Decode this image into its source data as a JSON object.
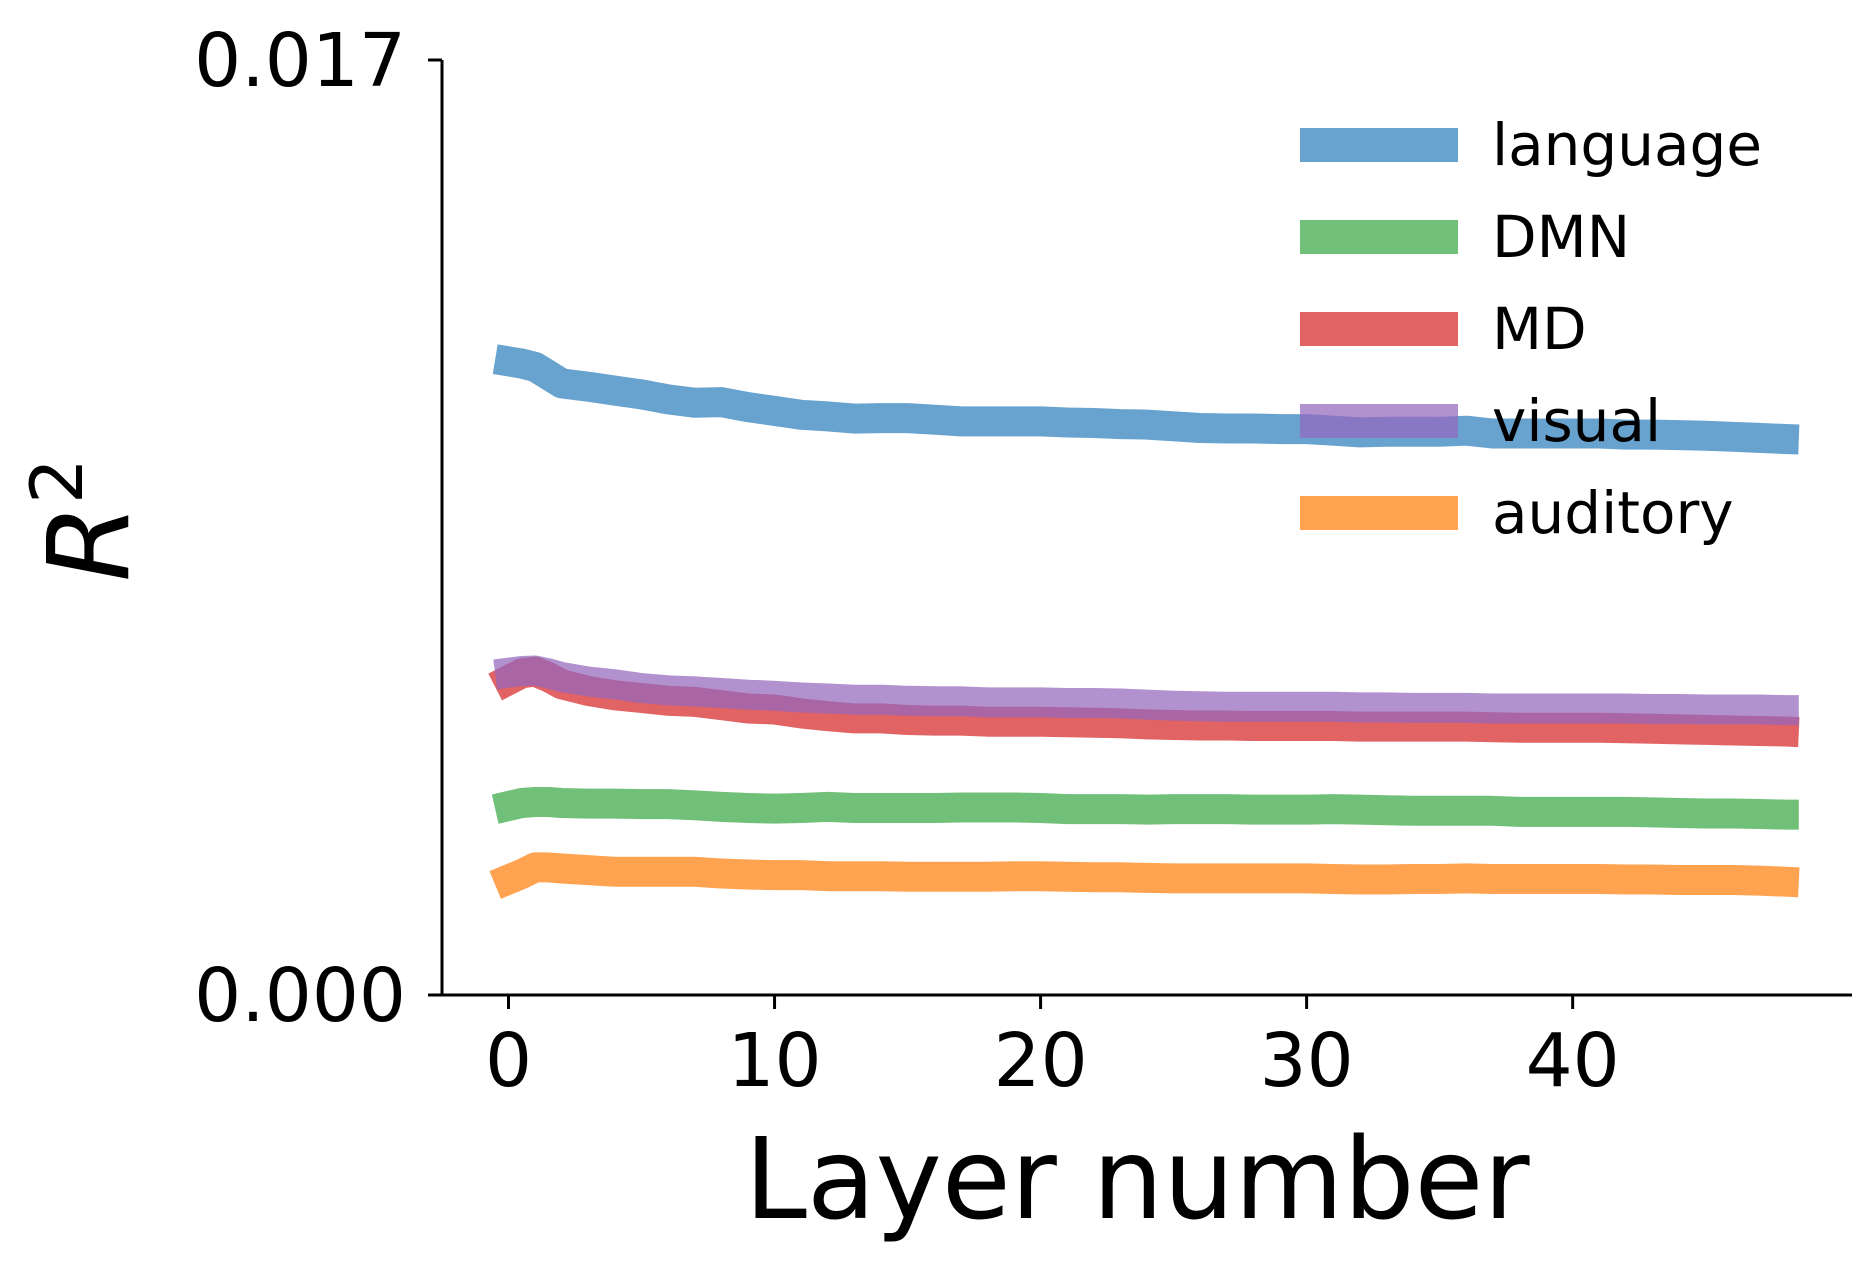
{
  "chart_data": {
    "type": "line",
    "xlabel": "Layer number",
    "ylabel": "R",
    "ylabel_superscript": "2",
    "xlim": [
      -2.5,
      50.5
    ],
    "ylim": [
      0.0,
      0.017
    ],
    "xticks": [
      0,
      10,
      20,
      30,
      40
    ],
    "xtick_labels": [
      "0",
      "10",
      "20",
      "30",
      "40"
    ],
    "yticks": [
      0.0,
      0.017
    ],
    "ytick_labels": [
      "0.000",
      "0.017"
    ],
    "grid": false,
    "legend_position": "top-right",
    "x": [
      -0.5,
      0.5,
      1,
      1.5,
      2,
      3,
      4,
      5,
      6,
      7,
      8,
      9,
      10,
      11,
      12,
      13,
      14,
      15,
      16,
      17,
      18,
      19,
      20,
      21,
      22,
      23,
      24,
      25,
      26,
      27,
      28,
      29,
      30,
      31,
      32,
      33,
      34,
      35,
      36,
      37,
      38,
      39,
      40,
      41,
      42,
      43,
      44,
      45,
      46,
      47,
      48,
      48.5
    ],
    "series": [
      {
        "name": "language",
        "color": "#2e7ebc",
        "values": [
          0.01156,
          0.01148,
          0.01142,
          0.01127,
          0.01112,
          0.01106,
          0.01099,
          0.01092,
          0.01083,
          0.01077,
          0.01078,
          0.01069,
          0.01062,
          0.01055,
          0.01052,
          0.01048,
          0.01049,
          0.01049,
          0.01046,
          0.01043,
          0.01043,
          0.01043,
          0.01043,
          0.01041,
          0.0104,
          0.01038,
          0.01037,
          0.01034,
          0.01031,
          0.0103,
          0.0103,
          0.01029,
          0.01029,
          0.01026,
          0.01023,
          0.01024,
          0.01024,
          0.01024,
          0.01026,
          0.01021,
          0.01021,
          0.01021,
          0.01021,
          0.01021,
          0.01019,
          0.01019,
          0.01018,
          0.01017,
          0.01015,
          0.01013,
          0.01011,
          0.0101
        ]
      },
      {
        "name": "DMN",
        "color": "#3aa845",
        "values": [
          0.00338,
          0.00349,
          0.00351,
          0.00351,
          0.00349,
          0.00348,
          0.00348,
          0.00347,
          0.00347,
          0.00345,
          0.00342,
          0.0034,
          0.00339,
          0.0034,
          0.00342,
          0.0034,
          0.0034,
          0.0034,
          0.0034,
          0.00341,
          0.00341,
          0.00341,
          0.0034,
          0.00338,
          0.00338,
          0.00338,
          0.00337,
          0.00338,
          0.00338,
          0.00338,
          0.00337,
          0.00337,
          0.00337,
          0.00338,
          0.00337,
          0.00336,
          0.00335,
          0.00335,
          0.00335,
          0.00335,
          0.00333,
          0.00333,
          0.00333,
          0.00333,
          0.00333,
          0.00332,
          0.00331,
          0.0033,
          0.0033,
          0.00329,
          0.00328,
          0.00328
        ]
      },
      {
        "name": "MD",
        "color": "#d62728",
        "values": [
          0.0056,
          0.00585,
          0.00588,
          0.00578,
          0.00565,
          0.00553,
          0.00545,
          0.0054,
          0.00535,
          0.00533,
          0.00527,
          0.00521,
          0.00519,
          0.00512,
          0.00507,
          0.00503,
          0.00503,
          0.005,
          0.00499,
          0.00499,
          0.00497,
          0.00497,
          0.00497,
          0.00496,
          0.00495,
          0.00494,
          0.00492,
          0.00491,
          0.0049,
          0.0049,
          0.00489,
          0.00489,
          0.00489,
          0.00489,
          0.00488,
          0.00488,
          0.00488,
          0.00488,
          0.00488,
          0.00487,
          0.00486,
          0.00486,
          0.00486,
          0.00486,
          0.00485,
          0.00484,
          0.00483,
          0.00482,
          0.00481,
          0.0048,
          0.00479,
          0.00478
        ]
      },
      {
        "name": "visual",
        "color": "#9467bd",
        "values": [
          0.00583,
          0.00589,
          0.0059,
          0.00585,
          0.00578,
          0.0057,
          0.00565,
          0.00558,
          0.00554,
          0.00552,
          0.00549,
          0.00546,
          0.00544,
          0.00541,
          0.00539,
          0.00537,
          0.00537,
          0.00535,
          0.00534,
          0.00534,
          0.00532,
          0.00532,
          0.00532,
          0.00531,
          0.00531,
          0.0053,
          0.00528,
          0.00526,
          0.00525,
          0.00524,
          0.00524,
          0.00524,
          0.00524,
          0.00524,
          0.00523,
          0.00523,
          0.00522,
          0.00522,
          0.00522,
          0.00521,
          0.00521,
          0.00521,
          0.00521,
          0.00521,
          0.00521,
          0.0052,
          0.0052,
          0.00519,
          0.00519,
          0.00519,
          0.00518,
          0.00518
        ]
      },
      {
        "name": "auditory",
        "color": "#ff7f0e",
        "values": [
          0.002,
          0.0022,
          0.00232,
          0.00232,
          0.0023,
          0.00227,
          0.00224,
          0.00224,
          0.00224,
          0.00224,
          0.00221,
          0.00219,
          0.00218,
          0.00218,
          0.00216,
          0.00216,
          0.00216,
          0.00215,
          0.00215,
          0.00215,
          0.00215,
          0.00216,
          0.00216,
          0.00215,
          0.00214,
          0.00214,
          0.00213,
          0.00212,
          0.00212,
          0.00212,
          0.00212,
          0.00212,
          0.00212,
          0.00211,
          0.0021,
          0.0021,
          0.00211,
          0.00211,
          0.00212,
          0.00211,
          0.00211,
          0.00211,
          0.00211,
          0.00211,
          0.0021,
          0.0021,
          0.00209,
          0.00209,
          0.00209,
          0.00208,
          0.00206,
          0.00205
        ]
      }
    ]
  }
}
